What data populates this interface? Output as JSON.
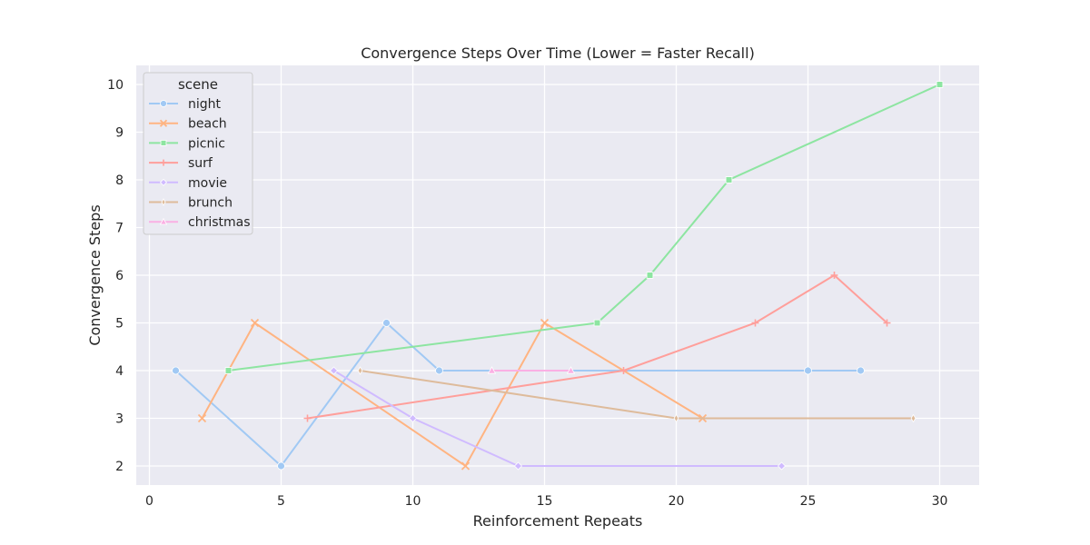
{
  "chart_data": {
    "type": "line",
    "title": "Convergence Steps Over Time (Lower = Faster Recall)",
    "xlabel": "Reinforcement Repeats",
    "ylabel": "Convergence Steps",
    "xlim": [
      -0.5,
      31.5
    ],
    "ylim": [
      1.6,
      10.4
    ],
    "xticks": [
      0,
      5,
      10,
      15,
      20,
      25,
      30
    ],
    "yticks": [
      2,
      3,
      4,
      5,
      6,
      7,
      8,
      9,
      10
    ],
    "grid": true,
    "legend": {
      "title": "scene",
      "placement": "top-left"
    },
    "series": [
      {
        "name": "night",
        "color": "#a1c9f4",
        "marker": "circle",
        "x": [
          1,
          5,
          9,
          11,
          25,
          27
        ],
        "y": [
          4,
          2,
          5,
          4,
          4,
          4
        ]
      },
      {
        "name": "beach",
        "color": "#ffb482",
        "marker": "x",
        "x": [
          2,
          4,
          12,
          15,
          21
        ],
        "y": [
          3,
          5,
          2,
          5,
          3
        ]
      },
      {
        "name": "picnic",
        "color": "#8de5a1",
        "marker": "square",
        "x": [
          3,
          17,
          19,
          22,
          30
        ],
        "y": [
          4,
          5,
          6,
          8,
          10
        ]
      },
      {
        "name": "surf",
        "color": "#ff9f9b",
        "marker": "plus",
        "x": [
          6,
          18,
          23,
          26,
          28
        ],
        "y": [
          3,
          4,
          5,
          6,
          5
        ]
      },
      {
        "name": "movie",
        "color": "#d0bbff",
        "marker": "diamond",
        "x": [
          7,
          10,
          14,
          24
        ],
        "y": [
          4,
          3,
          2,
          2
        ]
      },
      {
        "name": "brunch",
        "color": "#debb9b",
        "marker": "thin-diamond",
        "x": [
          8,
          20,
          29
        ],
        "y": [
          4,
          3,
          3
        ]
      },
      {
        "name": "christmas",
        "color": "#fab0e4",
        "marker": "triangle",
        "x": [
          13,
          16
        ],
        "y": [
          4,
          4
        ]
      }
    ]
  }
}
